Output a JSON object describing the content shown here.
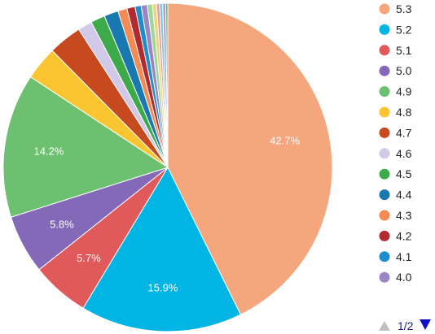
{
  "chart_data": {
    "type": "pie",
    "title": "",
    "slices": [
      {
        "label": "5.3",
        "value": 42.7,
        "color": "#f5a67d",
        "data_label": "42.7%"
      },
      {
        "label": "5.2",
        "value": 15.9,
        "color": "#00b4e4",
        "data_label": "15.9%"
      },
      {
        "label": "5.1",
        "value": 5.7,
        "color": "#e05a5c",
        "data_label": "5.7%"
      },
      {
        "label": "5.0",
        "value": 5.8,
        "color": "#8469b8",
        "data_label": "5.8%"
      },
      {
        "label": "4.9",
        "value": 14.2,
        "color": "#6cc070",
        "data_label": "14.2%"
      },
      {
        "label": "4.8",
        "value": 3.3,
        "color": "#fbc531",
        "data_label": ""
      },
      {
        "label": "4.7",
        "value": 3.3,
        "color": "#c74a1f",
        "data_label": ""
      },
      {
        "label": "4.6",
        "value": 1.4,
        "color": "#d2c8e8",
        "data_label": ""
      },
      {
        "label": "4.5",
        "value": 1.4,
        "color": "#3daa4a",
        "data_label": ""
      },
      {
        "label": "4.4",
        "value": 1.4,
        "color": "#1a78b0",
        "data_label": ""
      },
      {
        "label": "4.3",
        "value": 0.9,
        "color": "#f58a55",
        "data_label": ""
      },
      {
        "label": "4.2",
        "value": 0.8,
        "color": "#b02a2f",
        "data_label": ""
      },
      {
        "label": "4.1",
        "value": 0.6,
        "color": "#1c8ec9",
        "data_label": ""
      },
      {
        "label": "4.0",
        "value": 0.6,
        "color": "#9a86c4",
        "data_label": ""
      },
      {
        "label": "",
        "value": 0.5,
        "color": "#9bd89c",
        "data_label": ""
      },
      {
        "label": "",
        "value": 0.4,
        "color": "#f2d27a",
        "data_label": ""
      },
      {
        "label": "",
        "value": 0.3,
        "color": "#e0a0a0",
        "data_label": ""
      },
      {
        "label": "",
        "value": 0.3,
        "color": "#80c8e0",
        "data_label": ""
      },
      {
        "label": "",
        "value": 0.3,
        "color": "#b0a0d0",
        "data_label": ""
      },
      {
        "label": "",
        "value": 0.2,
        "color": "#60b070",
        "data_label": ""
      }
    ],
    "legend_position": "right",
    "legend_page": "1/2"
  }
}
